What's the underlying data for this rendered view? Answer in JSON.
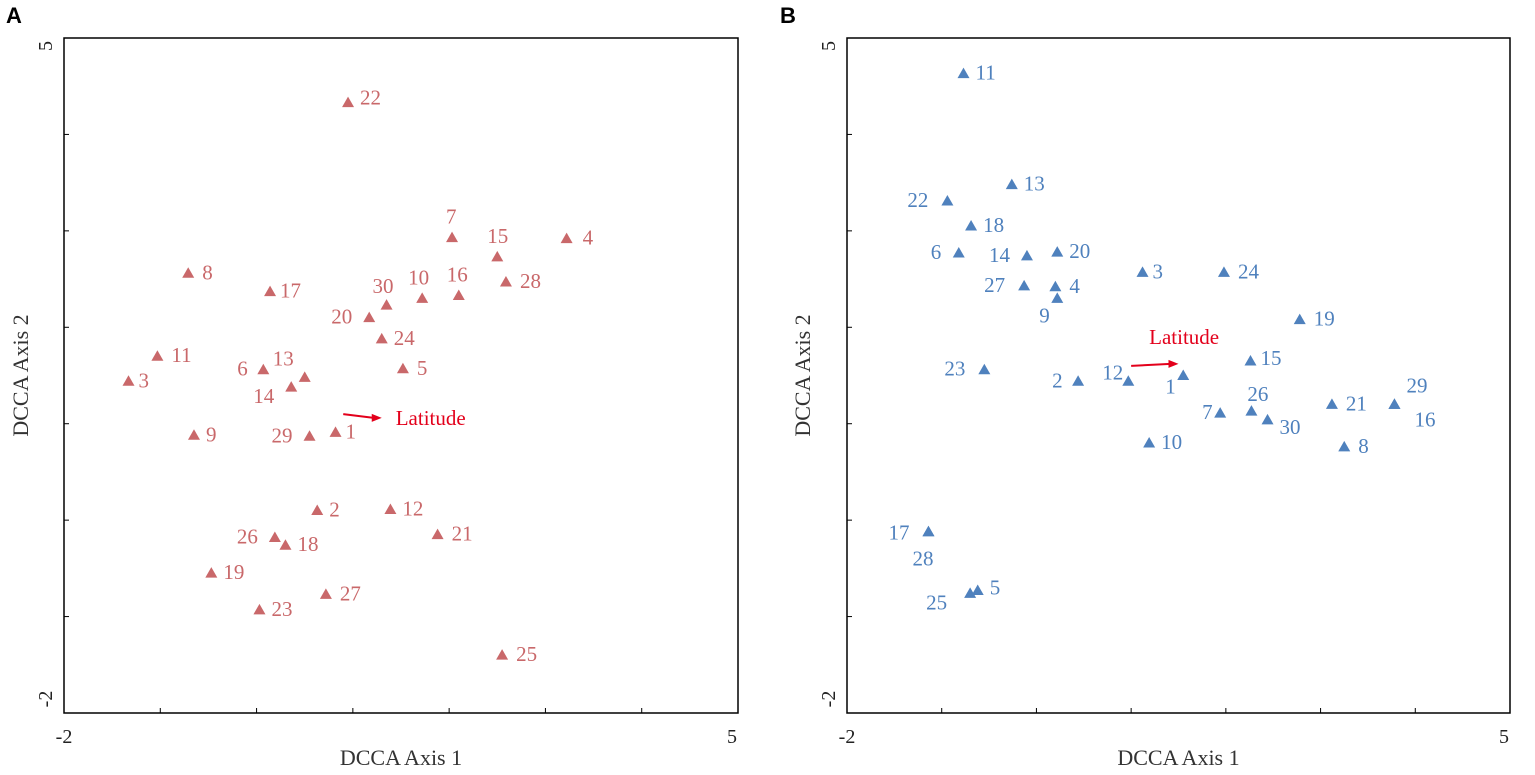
{
  "colors": {
    "panel_a_marker": "#c9686a",
    "panel_b_marker": "#4f81bd",
    "arrow": "#e3001b",
    "frame": "#000000"
  },
  "chart_data": [
    {
      "panel": "A",
      "type": "scatter",
      "xlabel": "DCCA  Axis 1",
      "ylabel": "DCCA  Axis 2",
      "xlim": [
        -2,
        5
      ],
      "ylim": [
        -2,
        5
      ],
      "x_tick_labels": [
        "-2",
        "5"
      ],
      "y_tick_labels": [
        "5",
        "-2"
      ],
      "marker": "triangle",
      "arrow": {
        "label": "Latitude",
        "from": [
          0.9,
          1.1
        ],
        "to": [
          1.3,
          1.06
        ]
      },
      "points": [
        {
          "label": "22",
          "x": 0.95,
          "y": 4.33
        },
        {
          "label": "7",
          "x": 2.03,
          "y": 2.93
        },
        {
          "label": "15",
          "x": 2.5,
          "y": 2.73
        },
        {
          "label": "4",
          "x": 3.22,
          "y": 2.92
        },
        {
          "label": "8",
          "x": -0.71,
          "y": 2.56
        },
        {
          "label": "17",
          "x": 0.14,
          "y": 2.37
        },
        {
          "label": "30",
          "x": 1.35,
          "y": 2.23
        },
        {
          "label": "10",
          "x": 1.72,
          "y": 2.3
        },
        {
          "label": "16",
          "x": 2.1,
          "y": 2.33
        },
        {
          "label": "28",
          "x": 2.59,
          "y": 2.47
        },
        {
          "label": "20",
          "x": 1.17,
          "y": 2.1
        },
        {
          "label": "24",
          "x": 1.3,
          "y": 1.88
        },
        {
          "label": "11",
          "x": -1.03,
          "y": 1.7
        },
        {
          "label": "3",
          "x": -1.33,
          "y": 1.44
        },
        {
          "label": "6",
          "x": 0.07,
          "y": 1.56
        },
        {
          "label": "13",
          "x": 0.5,
          "y": 1.48
        },
        {
          "label": "14",
          "x": 0.36,
          "y": 1.38
        },
        {
          "label": "5",
          "x": 1.52,
          "y": 1.57
        },
        {
          "label": "9",
          "x": -0.65,
          "y": 0.88
        },
        {
          "label": "29",
          "x": 0.55,
          "y": 0.87
        },
        {
          "label": "1",
          "x": 0.82,
          "y": 0.91
        },
        {
          "label": "2",
          "x": 0.63,
          "y": 0.1
        },
        {
          "label": "12",
          "x": 1.39,
          "y": 0.11
        },
        {
          "label": "26",
          "x": 0.19,
          "y": -0.18
        },
        {
          "label": "18",
          "x": 0.3,
          "y": -0.26
        },
        {
          "label": "21",
          "x": 1.88,
          "y": -0.15
        },
        {
          "label": "19",
          "x": -0.47,
          "y": -0.55
        },
        {
          "label": "27",
          "x": 0.72,
          "y": -0.77
        },
        {
          "label": "23",
          "x": 0.03,
          "y": -0.93
        },
        {
          "label": "25",
          "x": 2.55,
          "y": -1.4
        }
      ]
    },
    {
      "panel": "B",
      "type": "scatter",
      "xlabel": "DCCA  Axis 1",
      "ylabel": "DCCA  Axis 2",
      "xlim": [
        -2,
        5
      ],
      "ylim": [
        -2,
        5
      ],
      "x_tick_labels": [
        "-2",
        "5"
      ],
      "y_tick_labels": [
        "5",
        "-2"
      ],
      "marker": "triangle",
      "arrow": {
        "label": "Latitude",
        "from": [
          1.0,
          1.6
        ],
        "to": [
          1.5,
          1.62
        ]
      },
      "points": [
        {
          "label": "11",
          "x": -0.77,
          "y": 4.63
        },
        {
          "label": "13",
          "x": -0.26,
          "y": 3.48
        },
        {
          "label": "22",
          "x": -0.94,
          "y": 3.31
        },
        {
          "label": "18",
          "x": -0.69,
          "y": 3.05
        },
        {
          "label": "6",
          "x": -0.82,
          "y": 2.77
        },
        {
          "label": "14",
          "x": -0.1,
          "y": 2.74
        },
        {
          "label": "20",
          "x": 0.22,
          "y": 2.78
        },
        {
          "label": "3",
          "x": 1.12,
          "y": 2.57
        },
        {
          "label": "24",
          "x": 1.98,
          "y": 2.57
        },
        {
          "label": "27",
          "x": -0.13,
          "y": 2.43
        },
        {
          "label": "4",
          "x": 0.2,
          "y": 2.42
        },
        {
          "label": "9",
          "x": 0.22,
          "y": 2.3
        },
        {
          "label": "19",
          "x": 2.78,
          "y": 2.08
        },
        {
          "label": "23",
          "x": -0.55,
          "y": 1.56
        },
        {
          "label": "15",
          "x": 2.26,
          "y": 1.65
        },
        {
          "label": "2",
          "x": 0.44,
          "y": 1.44
        },
        {
          "label": "12",
          "x": 0.97,
          "y": 1.44
        },
        {
          "label": "1",
          "x": 1.55,
          "y": 1.5
        },
        {
          "label": "26",
          "x": 2.27,
          "y": 1.13
        },
        {
          "label": "7",
          "x": 1.94,
          "y": 1.11
        },
        {
          "label": "30",
          "x": 2.44,
          "y": 1.04
        },
        {
          "label": "21",
          "x": 3.12,
          "y": 1.2
        },
        {
          "label": "29",
          "x": 3.78,
          "y": 1.2
        },
        {
          "label": "16",
          "x": 3.78,
          "y": 1.2
        },
        {
          "label": "10",
          "x": 1.19,
          "y": 0.8
        },
        {
          "label": "8",
          "x": 3.25,
          "y": 0.76
        },
        {
          "label": "17",
          "x": -1.14,
          "y": -0.12
        },
        {
          "label": "28",
          "x": -1.14,
          "y": -0.12
        },
        {
          "label": "25",
          "x": -0.7,
          "y": -0.76
        },
        {
          "label": "5",
          "x": -0.62,
          "y": -0.73
        }
      ]
    }
  ]
}
